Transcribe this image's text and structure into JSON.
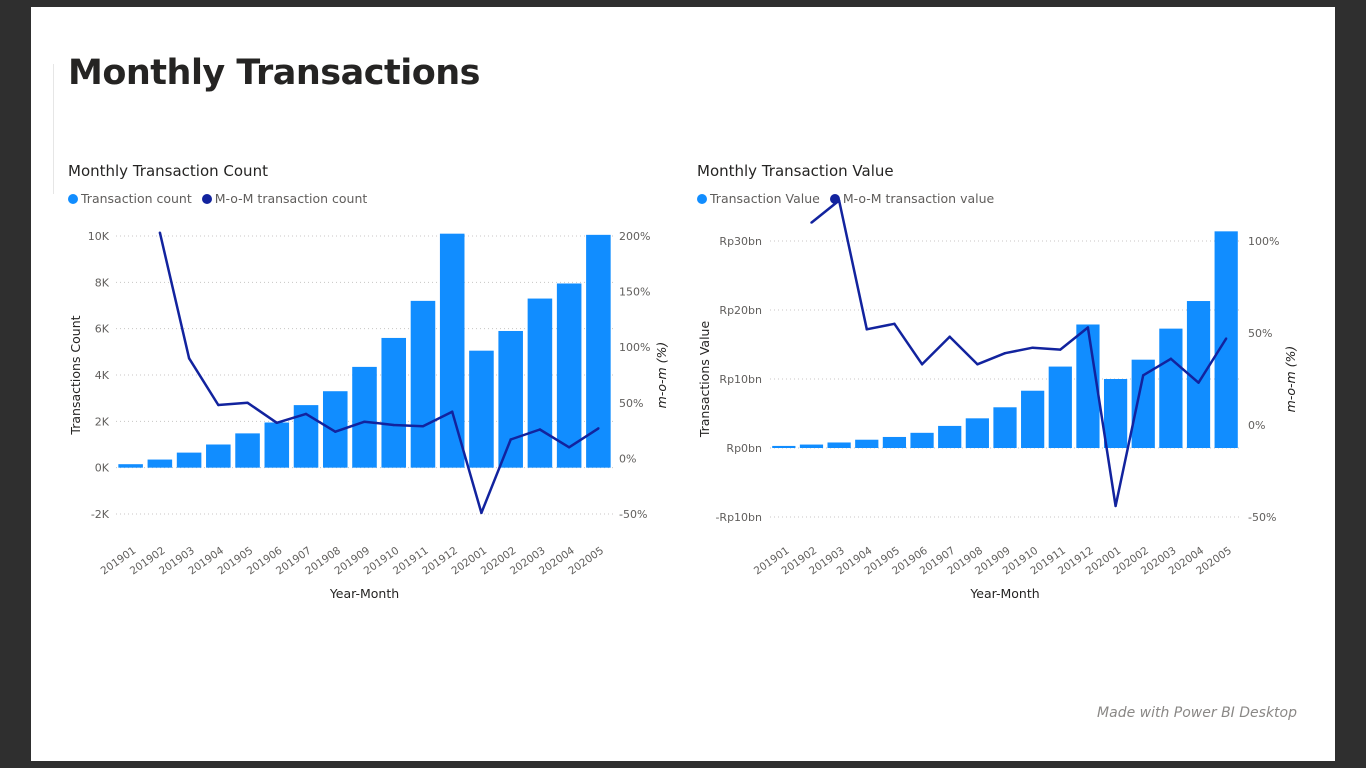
{
  "page": {
    "title": "Monthly Transactions",
    "footer": "Made with Power BI Desktop"
  },
  "colors": {
    "bar": "#118dff",
    "line": "#12239e",
    "grid": "#c8c6c4",
    "axis_text": "#605e5c",
    "title_text": "#252423"
  },
  "chart_data": [
    {
      "type": "bar",
      "title": "Monthly Transaction Count",
      "xlabel": "Year-Month",
      "ylabel": "Transactions Count",
      "y2label": "m-o-m (%)",
      "legend": [
        "Transaction count",
        "M-o-M transaction count"
      ],
      "legend_position": "top-left",
      "grid": true,
      "categories": [
        "201901",
        "201902",
        "201903",
        "201904",
        "201905",
        "201906",
        "201907",
        "201908",
        "201909",
        "201910",
        "201911",
        "201912",
        "202001",
        "202002",
        "202003",
        "202004",
        "202005"
      ],
      "ylim": [
        -2000,
        10000
      ],
      "yticks": [
        "10K",
        "8K",
        "6K",
        "4K",
        "2K",
        "0K",
        "-2K"
      ],
      "yticks_values": [
        10000,
        8000,
        6000,
        4000,
        2000,
        0,
        -2000
      ],
      "y2lim": [
        -50,
        200
      ],
      "y2ticks": [
        "200%",
        "150%",
        "100%",
        "50%",
        "0%",
        "-50%"
      ],
      "y2ticks_values": [
        200,
        150,
        100,
        50,
        0,
        -50
      ],
      "series": [
        {
          "name": "Transaction count",
          "kind": "bar",
          "values": [
            150,
            350,
            650,
            1000,
            1480,
            1950,
            2700,
            3300,
            4350,
            5600,
            7200,
            10100,
            5050,
            5900,
            7300,
            7950,
            10050
          ]
        },
        {
          "name": "M-o-M transaction count",
          "kind": "line",
          "axis": "right",
          "values": [
            null,
            203,
            90,
            48,
            50,
            32,
            40,
            24,
            33,
            30,
            29,
            42,
            -49,
            17,
            26,
            10,
            27
          ]
        }
      ]
    },
    {
      "type": "bar",
      "title": "Monthly Transaction Value",
      "xlabel": "Year-Month",
      "ylabel": "Transactions Value",
      "y2label": "m-o-m (%)",
      "legend": [
        "Transaction Value",
        "M-o-M transaction value"
      ],
      "legend_position": "top-left",
      "grid": true,
      "categories": [
        "201901",
        "201902",
        "201903",
        "201904",
        "201905",
        "201906",
        "201907",
        "201908",
        "201909",
        "201910",
        "201911",
        "201912",
        "202001",
        "202002",
        "202003",
        "202004",
        "202005"
      ],
      "ylim": [
        -10,
        30
      ],
      "yticks": [
        "Rp30bn",
        "Rp20bn",
        "Rp10bn",
        "Rp0bn",
        "-Rp10bn"
      ],
      "yticks_values": [
        30,
        20,
        10,
        0,
        -10
      ],
      "y2lim": [
        -50,
        100
      ],
      "y2ticks": [
        "100%",
        "50%",
        "0%",
        "-50%"
      ],
      "y2ticks_values": [
        100,
        50,
        0,
        -50
      ],
      "series": [
        {
          "name": "Transaction Value",
          "kind": "bar",
          "values": [
            0.3,
            0.5,
            0.8,
            1.2,
            1.6,
            2.2,
            3.2,
            4.3,
            5.9,
            8.3,
            11.8,
            17.9,
            10.0,
            12.8,
            17.3,
            21.3,
            31.4
          ]
        },
        {
          "name": "M-o-M transaction value",
          "kind": "line",
          "axis": "right",
          "values": [
            null,
            110,
            122,
            52,
            55,
            33,
            48,
            33,
            39,
            42,
            41,
            53,
            -44,
            27,
            36,
            23,
            47
          ]
        }
      ]
    }
  ]
}
